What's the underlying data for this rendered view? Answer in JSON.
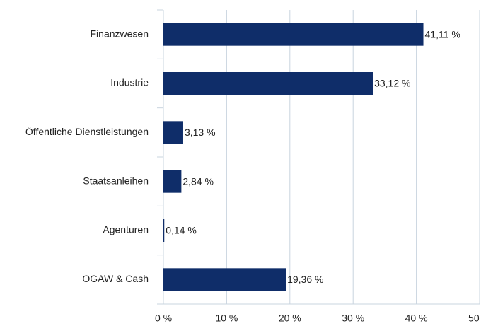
{
  "chart_data": {
    "type": "bar",
    "orientation": "horizontal",
    "categories": [
      "Finanzwesen",
      "Industrie",
      "Öffentliche Dienstleistungen",
      "Staatsanleihen",
      "Agenturen",
      "OGAW & Cash"
    ],
    "values": [
      41.11,
      33.12,
      3.13,
      2.84,
      0.14,
      19.36
    ],
    "value_labels": [
      "41,11 %",
      "33,12 %",
      "3,13 %",
      "2,84 %",
      "0,14 %",
      "19,36 %"
    ],
    "color": "#0f2d69",
    "xlim": [
      0,
      50
    ],
    "xticks": [
      {
        "value": 0,
        "label": "0 %"
      },
      {
        "value": 10,
        "label": "10 %"
      },
      {
        "value": 20,
        "label": "20 %"
      },
      {
        "value": 30,
        "label": "30 %"
      },
      {
        "value": 40,
        "label": "40 %"
      },
      {
        "value": 50,
        "label": "50 %"
      }
    ],
    "grid": true
  }
}
